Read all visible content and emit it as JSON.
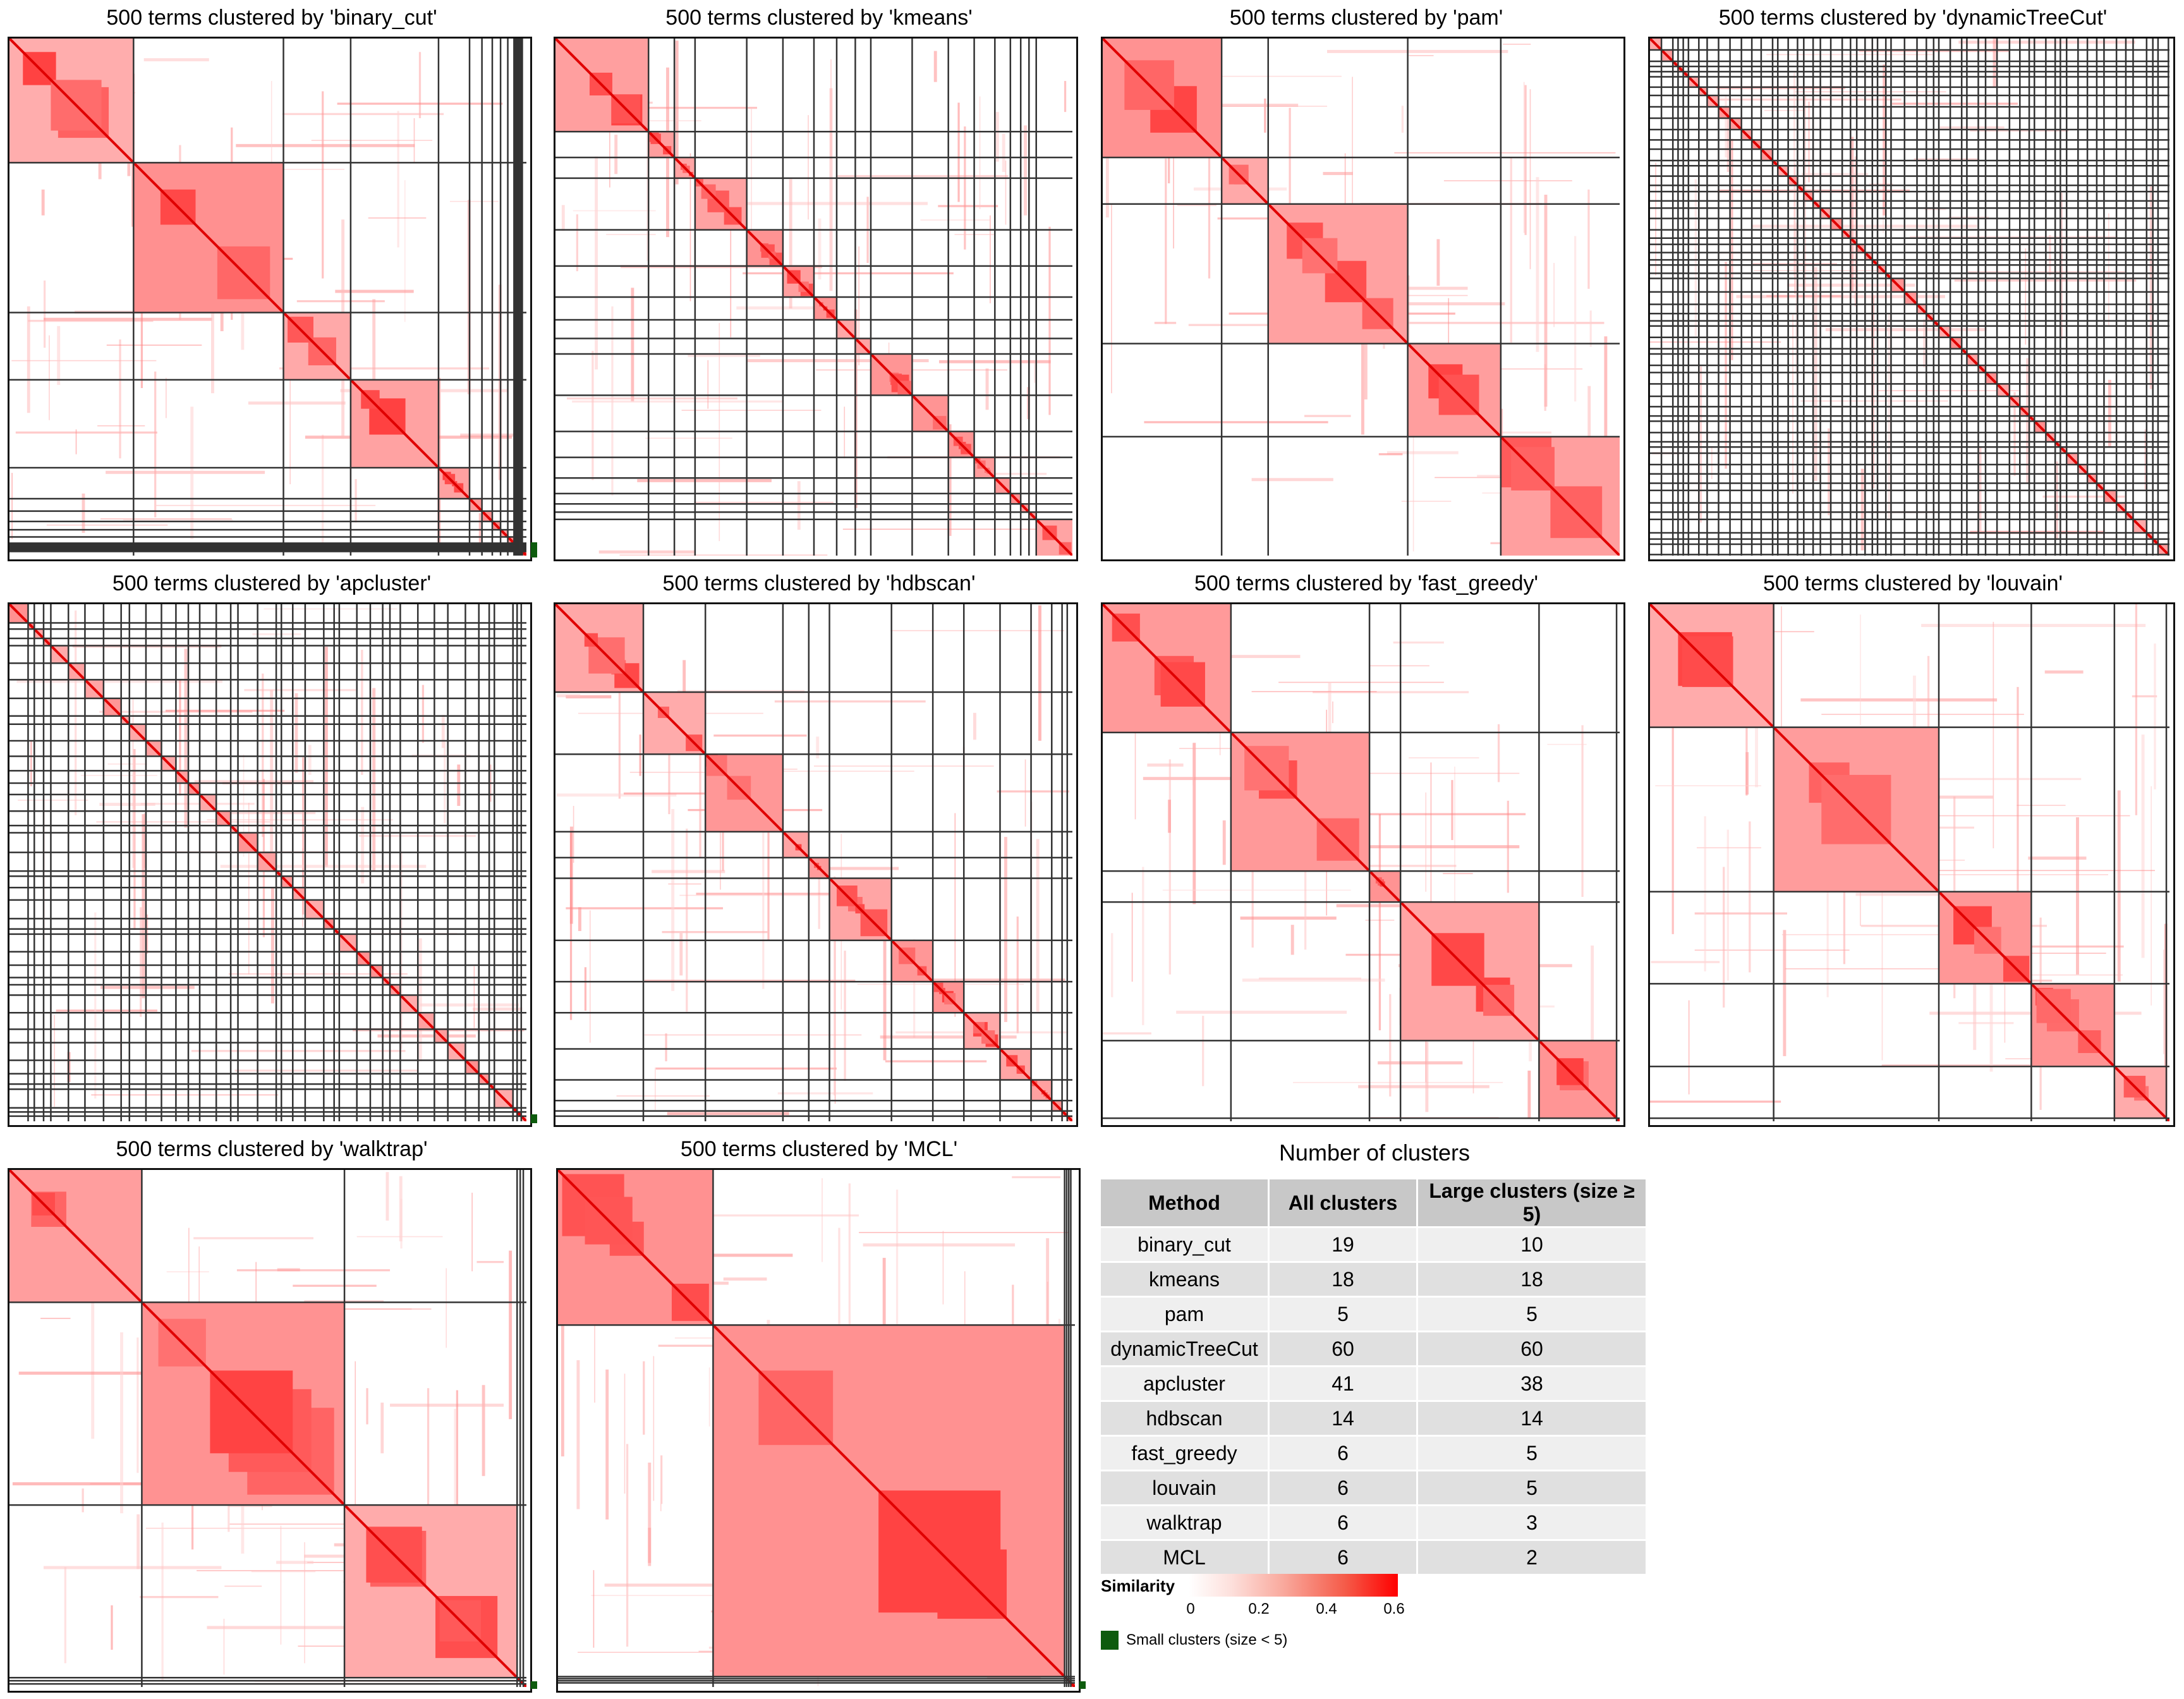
{
  "panels": [
    {
      "title": "500 terms clustered by 'binary_cut'"
    },
    {
      "title": "500 terms clustered by 'kmeans'"
    },
    {
      "title": "500 terms clustered by 'pam'"
    },
    {
      "title": "500 terms clustered by 'dynamicTreeCut'"
    },
    {
      "title": "500 terms clustered by 'apcluster'"
    },
    {
      "title": "500 terms clustered by 'hdbscan'"
    },
    {
      "title": "500 terms clustered by 'fast_greedy'"
    },
    {
      "title": "500 terms clustered by 'louvain'"
    },
    {
      "title": "500 terms clustered by 'walktrap'"
    },
    {
      "title": "500 terms clustered by 'MCL'"
    }
  ],
  "summary": {
    "title": "Number of clusters",
    "headers": [
      "Method",
      "All clusters",
      "Large clusters (size ≥ 5)"
    ],
    "rows": [
      [
        "binary_cut",
        "19",
        "10"
      ],
      [
        "kmeans",
        "18",
        "18"
      ],
      [
        "pam",
        "5",
        "5"
      ],
      [
        "dynamicTreeCut",
        "60",
        "60"
      ],
      [
        "apcluster",
        "41",
        "38"
      ],
      [
        "hdbscan",
        "14",
        "14"
      ],
      [
        "fast_greedy",
        "6",
        "5"
      ],
      [
        "louvain",
        "6",
        "5"
      ],
      [
        "walktrap",
        "6",
        "3"
      ],
      [
        "MCL",
        "6",
        "2"
      ]
    ]
  },
  "legend": {
    "title": "Similarity",
    "ticks": [
      "0",
      "0.2",
      "0.4",
      "0.6"
    ],
    "small_label": "Small clusters (size < 5)",
    "colors": {
      "low": "#ffffff",
      "high": "#ff0000",
      "small_clusters": "#0d5b0d"
    }
  },
  "chart_data": {
    "type": "heatmap",
    "n_terms": 500,
    "value_label": "Similarity",
    "color_range": [
      0,
      0.6
    ],
    "matrices": [
      {
        "method": "binary_cut",
        "all_clusters": 19,
        "large_clusters": 10,
        "large_cluster_sizes": [
          120,
          145,
          65,
          85,
          30,
          12,
          10,
          8,
          7,
          6
        ],
        "has_small_clusters": true
      },
      {
        "method": "kmeans",
        "all_clusters": 18,
        "large_clusters": 18,
        "large_cluster_sizes": [
          90,
          25,
          20,
          50,
          35,
          30,
          22,
          18,
          15,
          40,
          35,
          25,
          20,
          15,
          10,
          8,
          7,
          15
        ],
        "has_small_clusters": false
      },
      {
        "method": "pam",
        "all_clusters": 5,
        "large_clusters": 5,
        "large_cluster_sizes": [
          115,
          45,
          135,
          90,
          115
        ],
        "has_small_clusters": false
      },
      {
        "method": "dynamicTreeCut",
        "all_clusters": 60,
        "large_clusters": 60,
        "large_cluster_sizes": [],
        "has_small_clusters": false
      },
      {
        "method": "apcluster",
        "all_clusters": 41,
        "large_clusters": 38,
        "large_cluster_sizes": [],
        "has_small_clusters": true
      },
      {
        "method": "hdbscan",
        "all_clusters": 14,
        "large_clusters": 14,
        "large_cluster_sizes": [
          85,
          60,
          75,
          25,
          20,
          60,
          40,
          30,
          35,
          30,
          20,
          10,
          5,
          5
        ],
        "has_small_clusters": false
      },
      {
        "method": "fast_greedy",
        "all_clusters": 6,
        "large_clusters": 5,
        "large_cluster_sizes": [
          125,
          135,
          30,
          135,
          75
        ],
        "has_small_clusters": true
      },
      {
        "method": "louvain",
        "all_clusters": 6,
        "large_clusters": 5,
        "large_cluster_sizes": [
          120,
          160,
          90,
          80,
          50
        ],
        "has_small_clusters": true
      },
      {
        "method": "walktrap",
        "all_clusters": 6,
        "large_clusters": 3,
        "large_cluster_sizes": [
          130,
          200,
          170
        ],
        "has_small_clusters": true
      },
      {
        "method": "MCL",
        "all_clusters": 6,
        "large_clusters": 2,
        "large_cluster_sizes": [
          150,
          340
        ],
        "has_small_clusters": true
      }
    ]
  }
}
